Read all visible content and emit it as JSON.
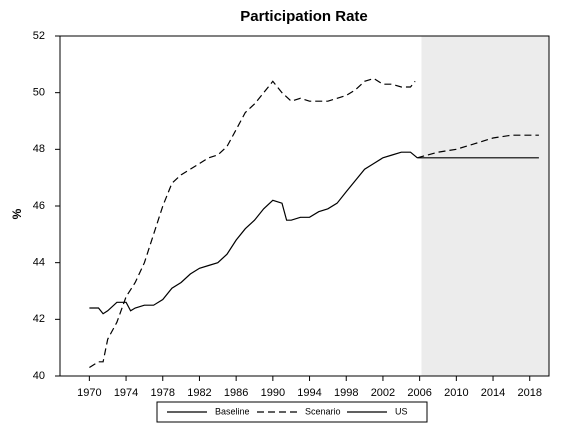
{
  "chart_data": {
    "type": "line",
    "title": "Participation Rate",
    "y_label": "%",
    "xlim": [
      1966.8,
      2020.1
    ],
    "ylim": [
      40,
      52
    ],
    "xticks": [
      1970,
      1974,
      1978,
      1982,
      1986,
      1990,
      1994,
      1998,
      2002,
      2006,
      2010,
      2014,
      2018
    ],
    "yticks": [
      40,
      42,
      44,
      46,
      48,
      50,
      52
    ],
    "shaded_xrange": [
      2006.2,
      2020.1
    ],
    "shade_color": "#ececec",
    "series": [
      {
        "name": "Baseline",
        "color": "#000000",
        "dashed": false,
        "x": [
          2005.75,
          2019
        ],
        "values": [
          47.7,
          47.7
        ]
      },
      {
        "name": "Scenario",
        "color": "#000000",
        "dashed": true,
        "x": [
          1970,
          1971,
          1971.5,
          1972,
          1973,
          1974,
          1975,
          1976,
          1977,
          1978,
          1979,
          1980,
          1981,
          1982,
          1983,
          1984,
          1985,
          1986,
          1987,
          1988,
          1989,
          1990,
          1991,
          1992,
          1993,
          1994,
          1995,
          1996,
          1997,
          1998,
          1999,
          2000,
          2001,
          2002,
          2003,
          2004,
          2005,
          2005.5,
          2005.6,
          2005.75,
          2008,
          2010,
          2012,
          2014,
          2016,
          2019
        ],
        "values": [
          40.3,
          40.5,
          40.5,
          41.3,
          41.9,
          42.8,
          43.3,
          44.0,
          45.0,
          46.0,
          46.8,
          47.1,
          47.3,
          47.5,
          47.7,
          47.8,
          48.1,
          48.7,
          49.3,
          49.6,
          50.0,
          50.4,
          50.0,
          49.7,
          49.8,
          49.7,
          49.7,
          49.7,
          49.8,
          49.9,
          50.1,
          50.4,
          50.5,
          50.3,
          50.3,
          50.2,
          50.2,
          50.4,
          null,
          47.7,
          47.9,
          48.0,
          48.2,
          48.4,
          48.5,
          48.5
        ]
      },
      {
        "name": "US",
        "color": "#000000",
        "dashed": false,
        "x": [
          1970,
          1971,
          1971.5,
          1972,
          1973,
          1974,
          1974.5,
          1975,
          1976,
          1977,
          1978,
          1979,
          1980,
          1981,
          1982,
          1983,
          1984,
          1985,
          1986,
          1987,
          1988,
          1989,
          1990,
          1991,
          1991.5,
          1992,
          1993,
          1994,
          1995,
          1996,
          1997,
          1998,
          1999,
          2000,
          2001,
          2002,
          2003,
          2004,
          2005,
          2005.75
        ],
        "values": [
          42.4,
          42.4,
          42.2,
          42.3,
          42.6,
          42.6,
          42.3,
          42.4,
          42.5,
          42.5,
          42.7,
          43.1,
          43.3,
          43.6,
          43.8,
          43.9,
          44.0,
          44.3,
          44.8,
          45.2,
          45.5,
          45.9,
          46.2,
          46.1,
          45.5,
          45.5,
          45.6,
          45.6,
          45.8,
          45.9,
          46.1,
          46.5,
          46.9,
          47.3,
          47.5,
          47.7,
          47.8,
          47.9,
          47.9,
          47.7
        ]
      }
    ]
  }
}
